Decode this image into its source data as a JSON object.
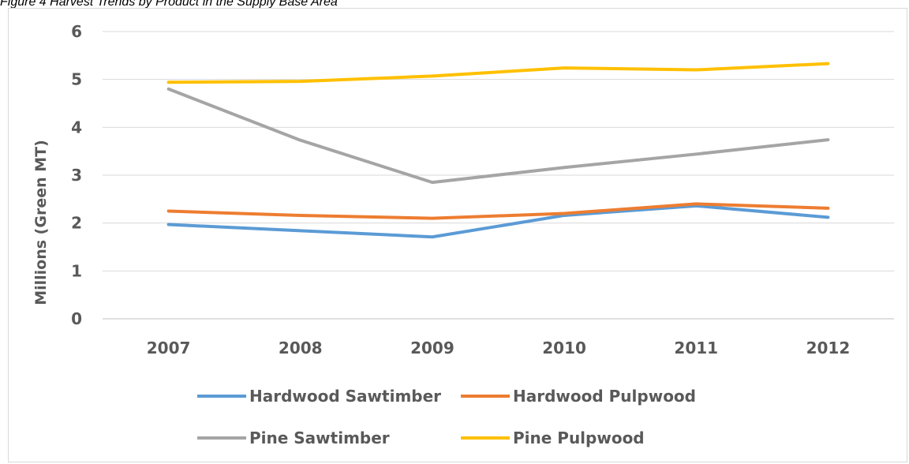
{
  "caption": "Figure 4 Harvest Trends by Product in the Supply Base Area",
  "chart_data": {
    "type": "line",
    "title": "",
    "xlabel": "",
    "ylabel": "Millions (Green MT)",
    "categories": [
      "2007",
      "2008",
      "2009",
      "2010",
      "2011",
      "2012"
    ],
    "ylim": [
      0,
      6
    ],
    "yticks": [
      "0",
      "1",
      "2",
      "3",
      "4",
      "5",
      "6"
    ],
    "grid": true,
    "legend_position": "bottom",
    "series": [
      {
        "name": "Hardwood Sawtimber",
        "color": "#5b9bd5",
        "values": [
          1.97,
          1.84,
          1.71,
          2.16,
          2.36,
          2.12
        ]
      },
      {
        "name": "Hardwood Pulpwood",
        "color": "#ed7d31",
        "values": [
          2.25,
          2.16,
          2.1,
          2.2,
          2.4,
          2.31
        ]
      },
      {
        "name": "Pine Sawtimber",
        "color": "#a5a5a5",
        "values": [
          4.8,
          3.73,
          2.85,
          3.16,
          3.44,
          3.74
        ]
      },
      {
        "name": "Pine Pulpwood",
        "color": "#ffc000",
        "values": [
          4.94,
          4.96,
          5.07,
          5.24,
          5.2,
          5.33
        ]
      }
    ]
  }
}
